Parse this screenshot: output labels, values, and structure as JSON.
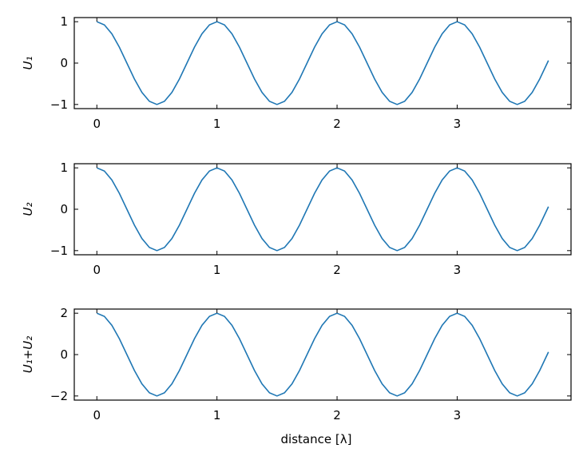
{
  "chart_data": [
    {
      "type": "line",
      "ylabel": "U₁",
      "color": "#1f77b4",
      "x": [
        0,
        0.0625,
        0.125,
        0.1875,
        0.25,
        0.3125,
        0.375,
        0.4375,
        0.5,
        0.5625,
        0.625,
        0.6875,
        0.75,
        0.8125,
        0.875,
        0.9375,
        1,
        1.0625,
        1.125,
        1.1875,
        1.25,
        1.3125,
        1.375,
        1.4375,
        1.5,
        1.5625,
        1.625,
        1.6875,
        1.75,
        1.8125,
        1.875,
        1.9375,
        2,
        2.0625,
        2.125,
        2.1875,
        2.25,
        2.3125,
        2.375,
        2.4375,
        2.5,
        2.5625,
        2.625,
        2.6875,
        2.75,
        2.8125,
        2.875,
        2.9375,
        3,
        3.0625,
        3.125,
        3.1875,
        3.25,
        3.3125,
        3.375,
        3.4375,
        3.5,
        3.5625,
        3.625,
        3.6875,
        3.75,
        3.76
      ],
      "values": [
        1,
        0.924,
        0.707,
        0.383,
        0,
        -0.383,
        -0.707,
        -0.924,
        -1,
        -0.924,
        -0.707,
        -0.383,
        0,
        0.383,
        0.707,
        0.924,
        1,
        0.924,
        0.707,
        0.383,
        0,
        -0.383,
        -0.707,
        -0.924,
        -1,
        -0.924,
        -0.707,
        -0.383,
        0,
        0.383,
        0.707,
        0.924,
        1,
        0.924,
        0.707,
        0.383,
        0,
        -0.383,
        -0.707,
        -0.924,
        -1,
        -0.924,
        -0.707,
        -0.383,
        0,
        0.383,
        0.707,
        0.924,
        1,
        0.924,
        0.707,
        0.383,
        0,
        -0.383,
        -0.707,
        -0.924,
        -1,
        -0.924,
        -0.707,
        -0.383,
        0,
        0.063
      ],
      "xlim": [
        -0.188,
        3.948
      ],
      "ylim": [
        -1.1,
        1.1
      ],
      "xticks": [
        0,
        1,
        2,
        3
      ],
      "yticks": [
        {
          "value": -1,
          "label": "−1"
        },
        0,
        1
      ]
    },
    {
      "type": "line",
      "ylabel": "U₂",
      "color": "#1f77b4",
      "x": [
        0,
        0.0625,
        0.125,
        0.1875,
        0.25,
        0.3125,
        0.375,
        0.4375,
        0.5,
        0.5625,
        0.625,
        0.6875,
        0.75,
        0.8125,
        0.875,
        0.9375,
        1,
        1.0625,
        1.125,
        1.1875,
        1.25,
        1.3125,
        1.375,
        1.4375,
        1.5,
        1.5625,
        1.625,
        1.6875,
        1.75,
        1.8125,
        1.875,
        1.9375,
        2,
        2.0625,
        2.125,
        2.1875,
        2.25,
        2.3125,
        2.375,
        2.4375,
        2.5,
        2.5625,
        2.625,
        2.6875,
        2.75,
        2.8125,
        2.875,
        2.9375,
        3,
        3.0625,
        3.125,
        3.1875,
        3.25,
        3.3125,
        3.375,
        3.4375,
        3.5,
        3.5625,
        3.625,
        3.6875,
        3.75,
        3.76
      ],
      "values": [
        1,
        0.924,
        0.707,
        0.383,
        0,
        -0.383,
        -0.707,
        -0.924,
        -1,
        -0.924,
        -0.707,
        -0.383,
        0,
        0.383,
        0.707,
        0.924,
        1,
        0.924,
        0.707,
        0.383,
        0,
        -0.383,
        -0.707,
        -0.924,
        -1,
        -0.924,
        -0.707,
        -0.383,
        0,
        0.383,
        0.707,
        0.924,
        1,
        0.924,
        0.707,
        0.383,
        0,
        -0.383,
        -0.707,
        -0.924,
        -1,
        -0.924,
        -0.707,
        -0.383,
        0,
        0.383,
        0.707,
        0.924,
        1,
        0.924,
        0.707,
        0.383,
        0,
        -0.383,
        -0.707,
        -0.924,
        -1,
        -0.924,
        -0.707,
        -0.383,
        0,
        0.063
      ],
      "xlim": [
        -0.188,
        3.948
      ],
      "ylim": [
        -1.1,
        1.1
      ],
      "xticks": [
        0,
        1,
        2,
        3
      ],
      "yticks": [
        {
          "value": -1,
          "label": "−1"
        },
        0,
        1
      ]
    },
    {
      "type": "line",
      "ylabel": "U₁+U₂",
      "xlabel": "distance [λ]",
      "color": "#1f77b4",
      "x": [
        0,
        0.0625,
        0.125,
        0.1875,
        0.25,
        0.3125,
        0.375,
        0.4375,
        0.5,
        0.5625,
        0.625,
        0.6875,
        0.75,
        0.8125,
        0.875,
        0.9375,
        1,
        1.0625,
        1.125,
        1.1875,
        1.25,
        1.3125,
        1.375,
        1.4375,
        1.5,
        1.5625,
        1.625,
        1.6875,
        1.75,
        1.8125,
        1.875,
        1.9375,
        2,
        2.0625,
        2.125,
        2.1875,
        2.25,
        2.3125,
        2.375,
        2.4375,
        2.5,
        2.5625,
        2.625,
        2.6875,
        2.75,
        2.8125,
        2.875,
        2.9375,
        3,
        3.0625,
        3.125,
        3.1875,
        3.25,
        3.3125,
        3.375,
        3.4375,
        3.5,
        3.5625,
        3.625,
        3.6875,
        3.75,
        3.76
      ],
      "values": [
        2,
        1.848,
        1.414,
        0.766,
        0,
        -0.766,
        -1.414,
        -1.848,
        -2,
        -1.848,
        -1.414,
        -0.766,
        0,
        0.766,
        1.414,
        1.848,
        2,
        1.848,
        1.414,
        0.766,
        0,
        -0.766,
        -1.414,
        -1.848,
        -2,
        -1.848,
        -1.414,
        -0.766,
        0,
        0.766,
        1.414,
        1.848,
        2,
        1.848,
        1.414,
        0.766,
        0,
        -0.766,
        -1.414,
        -1.848,
        -2,
        -1.848,
        -1.414,
        -0.766,
        0,
        0.766,
        1.414,
        1.848,
        2,
        1.848,
        1.414,
        0.766,
        0,
        -0.766,
        -1.414,
        -1.848,
        -2,
        -1.848,
        -1.414,
        -0.766,
        0,
        0.126
      ],
      "xlim": [
        -0.188,
        3.948
      ],
      "ylim": [
        -2.2,
        2.2
      ],
      "xticks": [
        0,
        1,
        2,
        3
      ],
      "yticks": [
        {
          "value": -2,
          "label": "−2"
        },
        0,
        2
      ]
    }
  ]
}
